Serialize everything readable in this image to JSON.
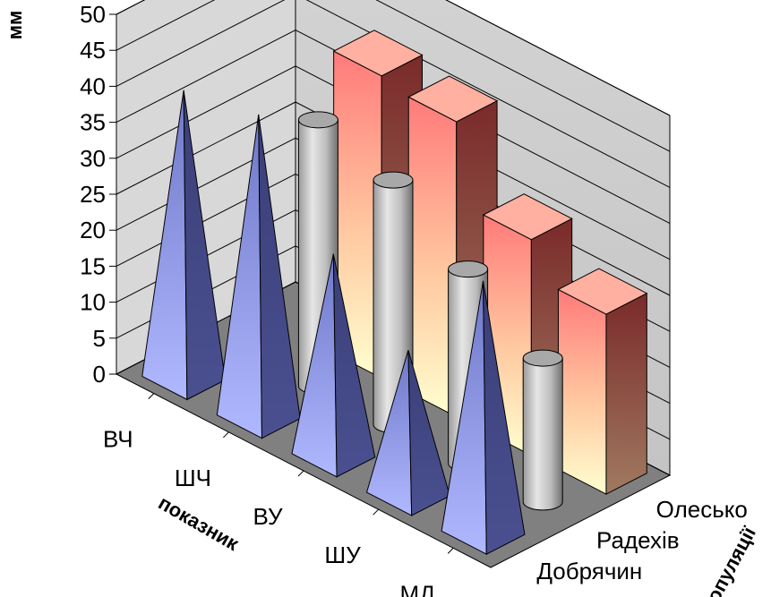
{
  "chart_data": {
    "type": "bar",
    "subtype": "3d-clustered",
    "ylabel": "мм",
    "xlabel": "показник",
    "zlabel": "популяції",
    "ylim": [
      0,
      50
    ],
    "yticks": [
      "0",
      "5",
      "10",
      "15",
      "20",
      "25",
      "30",
      "35",
      "40",
      "45",
      "50"
    ],
    "categories": [
      "ВЧ",
      "ШЧ",
      "ВУ",
      "ШУ",
      "МД"
    ],
    "series": [
      {
        "name": "Добрячин",
        "shape": "pyramid",
        "color": "#8a93e8",
        "values": [
          40,
          42,
          28,
          20,
          35
        ]
      },
      {
        "name": "Радехів",
        "shape": "cylinder",
        "color": "#b8b8b8",
        "values": [
          null,
          37,
          34,
          27,
          20
        ]
      },
      {
        "name": "Олесько",
        "shape": "box",
        "color": "#ff8080",
        "values": [
          null,
          42,
          41,
          30,
          25
        ]
      }
    ],
    "extra_bars": [
      {
        "series": "Радехів",
        "value": 28
      },
      {
        "series": "Олесько",
        "value": 34
      }
    ],
    "grid": true
  }
}
